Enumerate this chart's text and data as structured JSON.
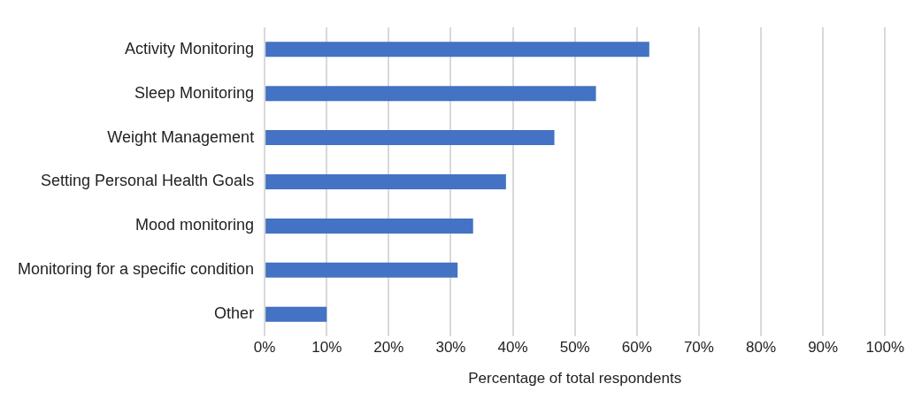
{
  "chart_data": {
    "type": "bar",
    "orientation": "horizontal",
    "xlabel": "Percentage of total respondents",
    "categories": [
      "Activity Monitoring",
      "Sleep Monitoring",
      "Weight Management",
      "Setting Personal Health Goals",
      "Mood monitoring",
      "Monitoring for a specific condition",
      "Other"
    ],
    "values": [
      62,
      53.4,
      46.7,
      38.9,
      33.6,
      31.1,
      10
    ],
    "color": "#4472c4",
    "xlim": [
      0,
      100
    ],
    "xticks": [
      {
        "value": 0,
        "label": "0%"
      },
      {
        "value": 10,
        "label": "10%"
      },
      {
        "value": 20,
        "label": "20%"
      },
      {
        "value": 30,
        "label": "30%"
      },
      {
        "value": 40,
        "label": "40%"
      },
      {
        "value": 50,
        "label": "50%"
      },
      {
        "value": 60,
        "label": "60%"
      },
      {
        "value": 70,
        "label": "70%"
      },
      {
        "value": 80,
        "label": "80%"
      },
      {
        "value": 90,
        "label": "90%"
      },
      {
        "value": 100,
        "label": "100%"
      }
    ],
    "grid": "x",
    "legend": false
  }
}
